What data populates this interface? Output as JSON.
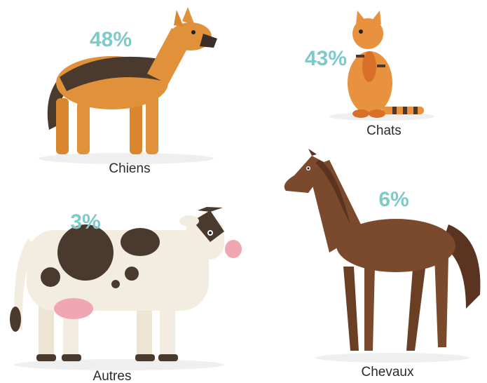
{
  "items": [
    {
      "label": "Chiens",
      "percent": "48%"
    },
    {
      "label": "Chats",
      "percent": "43%"
    },
    {
      "label": "Autres",
      "percent": "3%"
    },
    {
      "label": "Chevaux",
      "percent": "6%"
    }
  ]
}
